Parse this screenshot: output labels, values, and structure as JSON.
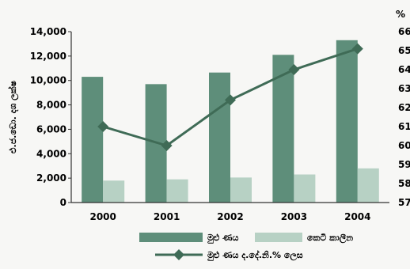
{
  "chart_data": {
    "type": "bar",
    "categories": [
      "2000",
      "2001",
      "2002",
      "2003",
      "2004"
    ],
    "ylabel_left": "එ.ජ.ඩො. දශ ලක්ෂ",
    "ylabel_right": "%",
    "ylim_left": [
      0,
      14000
    ],
    "yticks_left": [
      "0",
      "2,000",
      "4,000",
      "6,000",
      "8,000",
      "10,000",
      "12,000",
      "14,000"
    ],
    "ylim_right": [
      57,
      66
    ],
    "yticks_right": [
      "57",
      "58",
      "59",
      "60",
      "61",
      "62",
      "63",
      "64",
      "65",
      "66"
    ],
    "grid": false,
    "legend_position": "bottom",
    "series": [
      {
        "name": "මුළු ණය",
        "kind": "bar",
        "axis": "left",
        "color": "#5e8e7a",
        "values": [
          10300,
          9700,
          10650,
          12100,
          13300
        ]
      },
      {
        "name": "කෙටි කාලීන",
        "kind": "bar",
        "axis": "left",
        "color": "#b7d1c4",
        "values": [
          1800,
          1900,
          2050,
          2300,
          2800
        ]
      },
      {
        "name": "මුළු ණය ද.දේ.නි.% ලෙස",
        "kind": "line",
        "axis": "right",
        "color": "#3f6b56",
        "marker": "diamond",
        "values": [
          61.0,
          60.0,
          62.4,
          64.0,
          65.1
        ]
      }
    ]
  }
}
